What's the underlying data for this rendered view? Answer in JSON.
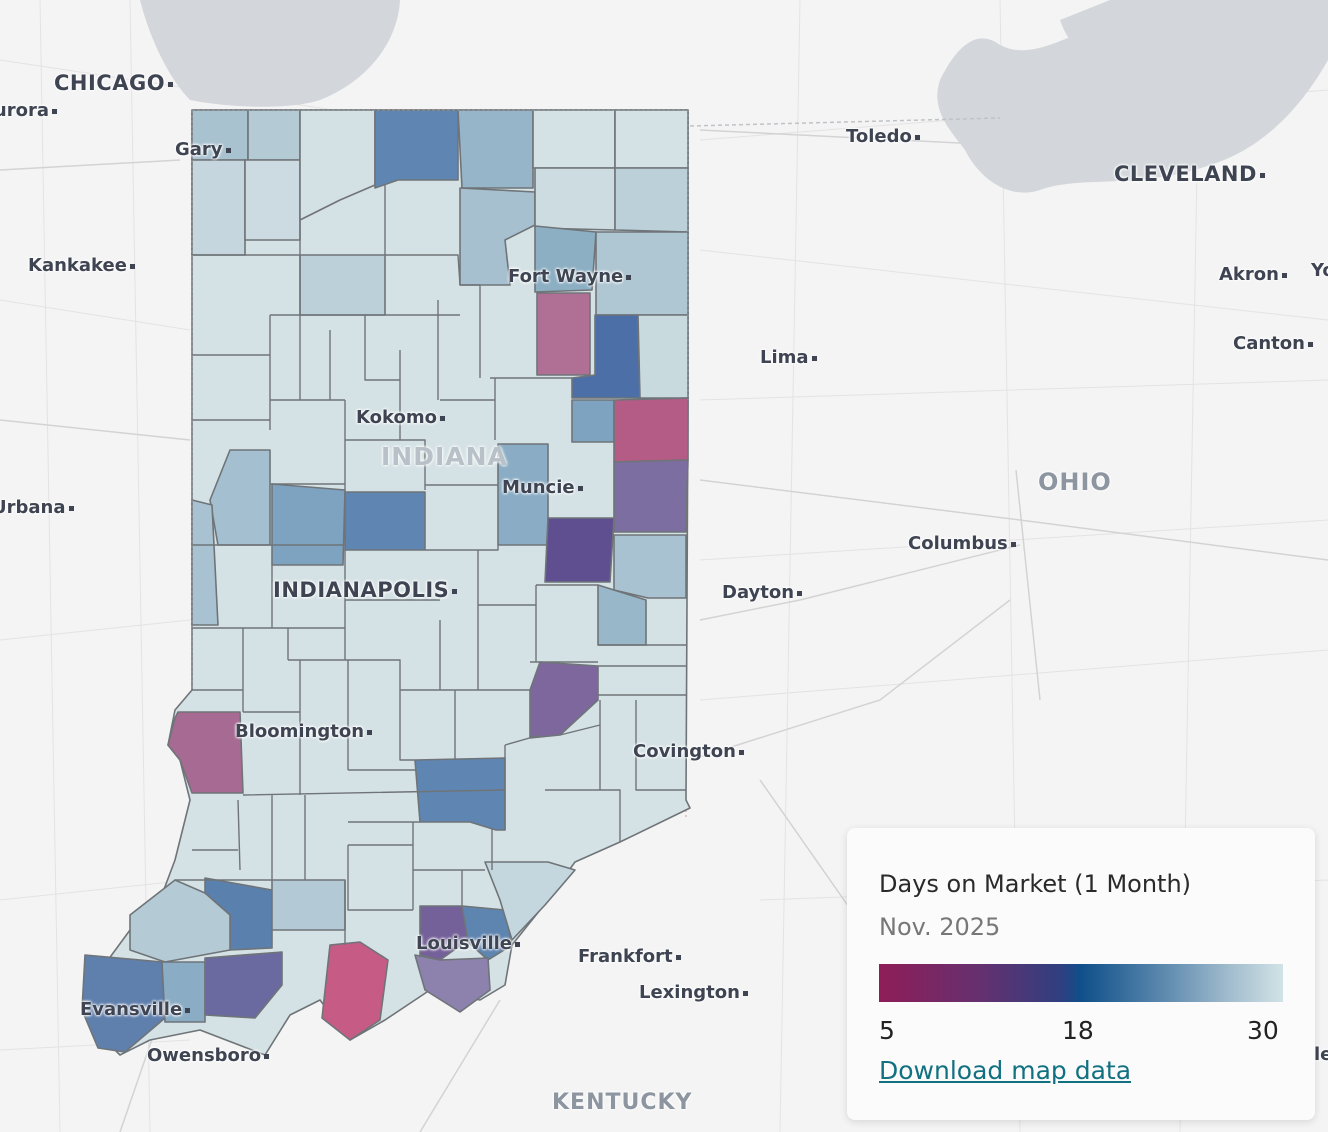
{
  "map": {
    "cities": [
      {
        "id": "chicago",
        "label": "CHICAGO",
        "big": true
      },
      {
        "id": "aurora",
        "label": "Aurora"
      },
      {
        "id": "gary",
        "label": "Gary"
      },
      {
        "id": "kankakee",
        "label": "Kankakee"
      },
      {
        "id": "toledo",
        "label": "Toledo"
      },
      {
        "id": "cleveland",
        "label": "CLEVELAND",
        "big": true
      },
      {
        "id": "akron",
        "label": "Akron"
      },
      {
        "id": "youngstown",
        "label": "Yo"
      },
      {
        "id": "canton",
        "label": "Canton"
      },
      {
        "id": "lima",
        "label": "Lima"
      },
      {
        "id": "fortwayne",
        "label": "Fort Wayne"
      },
      {
        "id": "kokomo",
        "label": "Kokomo"
      },
      {
        "id": "muncie",
        "label": "Muncie"
      },
      {
        "id": "urbana",
        "label": "Urbana"
      },
      {
        "id": "indianapolis",
        "label": "INDIANAPOLIS",
        "big": true
      },
      {
        "id": "columbus",
        "label": "Columbus"
      },
      {
        "id": "dayton",
        "label": "Dayton"
      },
      {
        "id": "bloomington",
        "label": "Bloomington"
      },
      {
        "id": "covington",
        "label": "Covington"
      },
      {
        "id": "louisville",
        "label": "Louisville"
      },
      {
        "id": "frankfort",
        "label": "Frankfort"
      },
      {
        "id": "lexington",
        "label": "Lexington"
      },
      {
        "id": "evansville",
        "label": "Evansville"
      },
      {
        "id": "owensboro",
        "label": "Owensboro"
      },
      {
        "id": "le",
        "label": "le"
      }
    ],
    "regions": {
      "indiana": "INDIANA",
      "ohio": "OHIO",
      "kentucky": "KENTUCKY"
    }
  },
  "legend": {
    "title": "Days on Market (1 Month)",
    "subtitle": "Nov. 2025",
    "min": "5",
    "mid": "18",
    "max": "30",
    "download_link": "Download map data",
    "colors": {
      "low": "#8f1d58",
      "mid": "#0f4f8a",
      "high": "#d1e3e6"
    }
  }
}
